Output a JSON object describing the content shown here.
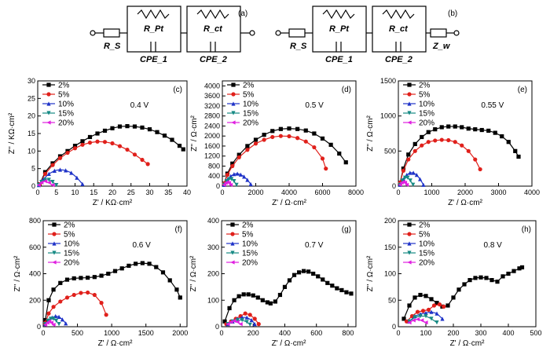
{
  "circuits": {
    "a": {
      "tag": "(a)",
      "elements": [
        "R_S",
        "R_Pt",
        "CPE_1",
        "R_ct",
        "CPE_2"
      ]
    },
    "b": {
      "tag": "(b)",
      "elements": [
        "R_S",
        "R_Pt",
        "CPE_1",
        "R_ct",
        "CPE_2",
        "Z_w"
      ]
    }
  },
  "colors": {
    "2%": "#000000",
    "5%": "#e0201b",
    "10%": "#1e32c8",
    "15%": "#168a84",
    "20%": "#e020e0"
  },
  "chart_data": [
    {
      "panel": "(c)",
      "type": "scatter",
      "annotation": "0.4 V",
      "xlabel": "Z' / KΩ·cm²",
      "ylabel": "Z'' / KΩ·cm²",
      "xlim": [
        0,
        40
      ],
      "ylim": [
        0,
        30
      ],
      "xticks": [
        0,
        5,
        10,
        15,
        20,
        25,
        30,
        35,
        40
      ],
      "yticks": [
        0,
        5,
        10,
        15,
        20,
        25,
        30
      ],
      "legend": [
        "2%",
        "5%",
        "10%",
        "15%",
        "20%"
      ],
      "series": [
        {
          "name": "2%",
          "x": [
            0.5,
            2,
            4,
            6,
            8,
            10,
            12,
            14,
            16,
            18,
            20,
            22,
            24,
            26,
            28,
            30,
            32,
            34,
            36,
            38,
            39
          ],
          "y": [
            0.5,
            4,
            6.5,
            8.5,
            10,
            11.5,
            12.8,
            14,
            15,
            15.8,
            16.5,
            17,
            17.1,
            17,
            16.7,
            16.2,
            15.4,
            14.4,
            13.2,
            11.5,
            10.5
          ]
        },
        {
          "name": "5%",
          "x": [
            0.5,
            2,
            4,
            6,
            8,
            10,
            12,
            14,
            16,
            18,
            20,
            22,
            24,
            26,
            28,
            29.5
          ],
          "y": [
            0.5,
            3.5,
            6,
            8,
            9.5,
            10.8,
            11.8,
            12.4,
            12.7,
            12.6,
            12.2,
            11.4,
            10.4,
            9,
            7.5,
            6.3
          ]
        },
        {
          "name": "10%",
          "x": [
            0.3,
            1.5,
            3,
            4.5,
            6,
            7.5,
            9,
            10.5,
            12
          ],
          "y": [
            0.3,
            2,
            3.5,
            4.4,
            4.7,
            4.5,
            3.8,
            2.4,
            0.6
          ]
        },
        {
          "name": "15%",
          "x": [
            0.3,
            1,
            2,
            3,
            4,
            5
          ],
          "y": [
            0.3,
            1.2,
            1.8,
            1.8,
            1.2,
            0.3
          ]
        },
        {
          "name": "20%",
          "x": [
            0.3,
            1,
            2,
            3,
            4
          ],
          "y": [
            0.3,
            1,
            1.4,
            1,
            0.3
          ]
        }
      ]
    },
    {
      "panel": "(d)",
      "type": "scatter",
      "annotation": "0.5 V",
      "xlabel": "Z' / Ω·cm²",
      "ylabel": "Z'' / Ω·cm²",
      "xlim": [
        0,
        8000
      ],
      "ylim": [
        0,
        4200
      ],
      "xticks": [
        0,
        2000,
        4000,
        6000,
        8000
      ],
      "yticks": [
        0,
        400,
        800,
        1200,
        1600,
        2000,
        2400,
        2800,
        3200,
        3600,
        4000
      ],
      "legend": [
        "2%",
        "5%",
        "10%",
        "15%",
        "20%"
      ],
      "series": [
        {
          "name": "2%",
          "x": [
            100,
            300,
            600,
            1000,
            1500,
            2000,
            2500,
            3000,
            3500,
            4000,
            4500,
            5000,
            5500,
            6000,
            6500,
            7000,
            7400
          ],
          "y": [
            100,
            500,
            900,
            1250,
            1600,
            1850,
            2050,
            2200,
            2280,
            2300,
            2280,
            2220,
            2100,
            1900,
            1650,
            1300,
            950
          ]
        },
        {
          "name": "5%",
          "x": [
            100,
            300,
            600,
            1000,
            1500,
            2000,
            2500,
            3000,
            3500,
            4000,
            4500,
            5000,
            5500,
            6000,
            6200
          ],
          "y": [
            100,
            450,
            800,
            1150,
            1450,
            1700,
            1850,
            1960,
            2000,
            1990,
            1920,
            1780,
            1550,
            1100,
            700
          ]
        },
        {
          "name": "10%",
          "x": [
            100,
            300,
            500,
            700,
            900,
            1100,
            1300,
            1500,
            1700
          ],
          "y": [
            50,
            250,
            400,
            480,
            500,
            460,
            380,
            250,
            80
          ]
        },
        {
          "name": "15%",
          "x": [
            100,
            250,
            400,
            550,
            700,
            850
          ],
          "y": [
            50,
            200,
            280,
            280,
            200,
            50
          ]
        },
        {
          "name": "20%",
          "x": [
            100,
            200,
            300,
            400,
            500
          ],
          "y": [
            50,
            130,
            160,
            130,
            50
          ]
        }
      ]
    },
    {
      "panel": "(e)",
      "type": "scatter",
      "annotation": "0.55 V",
      "xlabel": "Z' / Ω·cm²",
      "ylabel": "Z'' / Ω·cm²",
      "xlim": [
        0,
        4000
      ],
      "ylim": [
        0,
        1500
      ],
      "xticks": [
        0,
        1000,
        2000,
        3000,
        4000
      ],
      "yticks": [
        0,
        500,
        1000,
        1500
      ],
      "legend": [
        "2%",
        "5%",
        "10%",
        "15%",
        "20%"
      ],
      "series": [
        {
          "name": "2%",
          "x": [
            50,
            150,
            300,
            500,
            700,
            900,
            1100,
            1300,
            1500,
            1700,
            1900,
            2100,
            2300,
            2500,
            2700,
            2900,
            3100,
            3300,
            3500,
            3600
          ],
          "y": [
            50,
            250,
            450,
            600,
            700,
            770,
            810,
            840,
            850,
            850,
            840,
            820,
            810,
            800,
            790,
            760,
            710,
            630,
            500,
            420
          ]
        },
        {
          "name": "5%",
          "x": [
            50,
            150,
            300,
            500,
            700,
            900,
            1100,
            1300,
            1500,
            1700,
            1900,
            2100,
            2300,
            2450
          ],
          "y": [
            50,
            220,
            380,
            500,
            580,
            630,
            650,
            660,
            655,
            630,
            580,
            500,
            380,
            240
          ]
        },
        {
          "name": "10%",
          "x": [
            50,
            150,
            250,
            350,
            450,
            550,
            650,
            750
          ],
          "y": [
            20,
            100,
            160,
            190,
            190,
            160,
            100,
            20
          ]
        },
        {
          "name": "15%",
          "x": [
            50,
            120,
            200,
            280,
            360,
            440
          ],
          "y": [
            20,
            80,
            120,
            120,
            80,
            20
          ]
        },
        {
          "name": "20%",
          "x": [
            50,
            100,
            150,
            200,
            250
          ],
          "y": [
            20,
            50,
            60,
            50,
            20
          ]
        }
      ]
    },
    {
      "panel": "(f)",
      "type": "scatter",
      "annotation": "0.6 V",
      "xlabel": "Z' / Ω·cm²",
      "ylabel": "Z'' / Ω·cm²",
      "xlim": [
        0,
        2100
      ],
      "ylim": [
        0,
        800
      ],
      "xticks": [
        0,
        500,
        1000,
        1500,
        2000
      ],
      "yticks": [
        0,
        200,
        400,
        600,
        800
      ],
      "legend": [
        "2%",
        "5%",
        "10%",
        "15%",
        "20%"
      ],
      "series": [
        {
          "name": "2%",
          "x": [
            30,
            80,
            150,
            250,
            350,
            450,
            550,
            650,
            750,
            850,
            950,
            1050,
            1150,
            1250,
            1350,
            1450,
            1550,
            1650,
            1750,
            1850,
            1950,
            2000
          ],
          "y": [
            50,
            200,
            280,
            330,
            355,
            365,
            368,
            370,
            375,
            385,
            400,
            420,
            440,
            460,
            475,
            480,
            475,
            450,
            410,
            350,
            280,
            220
          ]
        },
        {
          "name": "5%",
          "x": [
            30,
            80,
            150,
            250,
            350,
            450,
            550,
            650,
            750,
            850,
            920
          ],
          "y": [
            30,
            100,
            150,
            190,
            220,
            240,
            255,
            258,
            240,
            180,
            90
          ]
        },
        {
          "name": "10%",
          "x": [
            30,
            80,
            130,
            180,
            230,
            280,
            330
          ],
          "y": [
            20,
            50,
            70,
            80,
            75,
            55,
            25
          ]
        },
        {
          "name": "15%",
          "x": [
            30,
            70,
            110,
            150,
            190,
            230
          ],
          "y": [
            20,
            45,
            60,
            60,
            45,
            20
          ]
        },
        {
          "name": "20%",
          "x": [
            30,
            60,
            90,
            120,
            150
          ],
          "y": [
            15,
            30,
            40,
            30,
            15
          ]
        }
      ]
    },
    {
      "panel": "(g)",
      "type": "scatter",
      "annotation": "0.7 V",
      "xlabel": "Z' / Ω·cm²",
      "ylabel": "Z'' / Ω·cm²",
      "xlim": [
        0,
        850
      ],
      "ylim": [
        0,
        400
      ],
      "xticks": [
        0,
        200,
        400,
        600,
        800
      ],
      "yticks": [
        0,
        100,
        200,
        300,
        400
      ],
      "legend": [
        "2%",
        "5%",
        "10%",
        "15%",
        "20%"
      ],
      "series": [
        {
          "name": "2%",
          "x": [
            20,
            50,
            80,
            110,
            140,
            170,
            200,
            230,
            260,
            290,
            310,
            340,
            370,
            400,
            430,
            460,
            490,
            520,
            550,
            580,
            610,
            640,
            670,
            700,
            730,
            760,
            790,
            820
          ],
          "y": [
            20,
            70,
            100,
            115,
            122,
            122,
            118,
            110,
            100,
            92,
            88,
            95,
            120,
            150,
            175,
            195,
            205,
            210,
            208,
            200,
            190,
            178,
            165,
            155,
            145,
            138,
            130,
            125
          ]
        },
        {
          "name": "5%",
          "x": [
            30,
            60,
            90,
            120,
            150,
            180,
            210,
            235
          ],
          "y": [
            10,
            20,
            30,
            40,
            50,
            45,
            30,
            10
          ]
        },
        {
          "name": "10%",
          "x": [
            40,
            70,
            100,
            130,
            160,
            190,
            210
          ],
          "y": [
            10,
            20,
            30,
            35,
            35,
            25,
            10
          ]
        },
        {
          "name": "15%",
          "x": [
            40,
            70,
            100,
            130,
            160,
            180
          ],
          "y": [
            10,
            20,
            25,
            25,
            18,
            8
          ]
        },
        {
          "name": "20%",
          "x": [
            40,
            60,
            80,
            100,
            120
          ],
          "y": [
            10,
            18,
            22,
            18,
            10
          ]
        }
      ]
    },
    {
      "panel": "(h)",
      "type": "scatter",
      "annotation": "0.8 V",
      "xlabel": "Z' / Ω·cm²",
      "ylabel": "Z'' / Ω·cm²",
      "xlim": [
        0,
        500
      ],
      "ylim": [
        0,
        200
      ],
      "xticks": [
        0,
        100,
        200,
        300,
        400,
        500
      ],
      "yticks": [
        0,
        50,
        100,
        150,
        200
      ],
      "legend": [
        "2%",
        "5%",
        "10%",
        "15%",
        "20%"
      ],
      "series": [
        {
          "name": "2%",
          "x": [
            20,
            40,
            60,
            80,
            100,
            120,
            140,
            160,
            180,
            200,
            220,
            240,
            260,
            280,
            300,
            320,
            340,
            360,
            380,
            400,
            420,
            440,
            450
          ],
          "y": [
            15,
            40,
            55,
            60,
            58,
            52,
            45,
            38,
            40,
            55,
            70,
            80,
            88,
            92,
            93,
            92,
            88,
            85,
            95,
            100,
            105,
            110,
            112
          ]
        },
        {
          "name": "5%",
          "x": [
            30,
            50,
            70,
            90,
            110,
            130,
            150,
            165
          ],
          "y": [
            10,
            20,
            28,
            30,
            32,
            40,
            42,
            38
          ]
        },
        {
          "name": "10%",
          "x": [
            40,
            60,
            80,
            100,
            120,
            140,
            160
          ],
          "y": [
            10,
            20,
            24,
            26,
            28,
            25,
            15
          ]
        },
        {
          "name": "15%",
          "x": [
            40,
            60,
            80,
            100,
            120,
            140
          ],
          "y": [
            10,
            18,
            20,
            20,
            15,
            8
          ]
        },
        {
          "name": "20%",
          "x": [
            40,
            55,
            70,
            85,
            100
          ],
          "y": [
            8,
            12,
            14,
            12,
            8
          ]
        }
      ]
    }
  ]
}
